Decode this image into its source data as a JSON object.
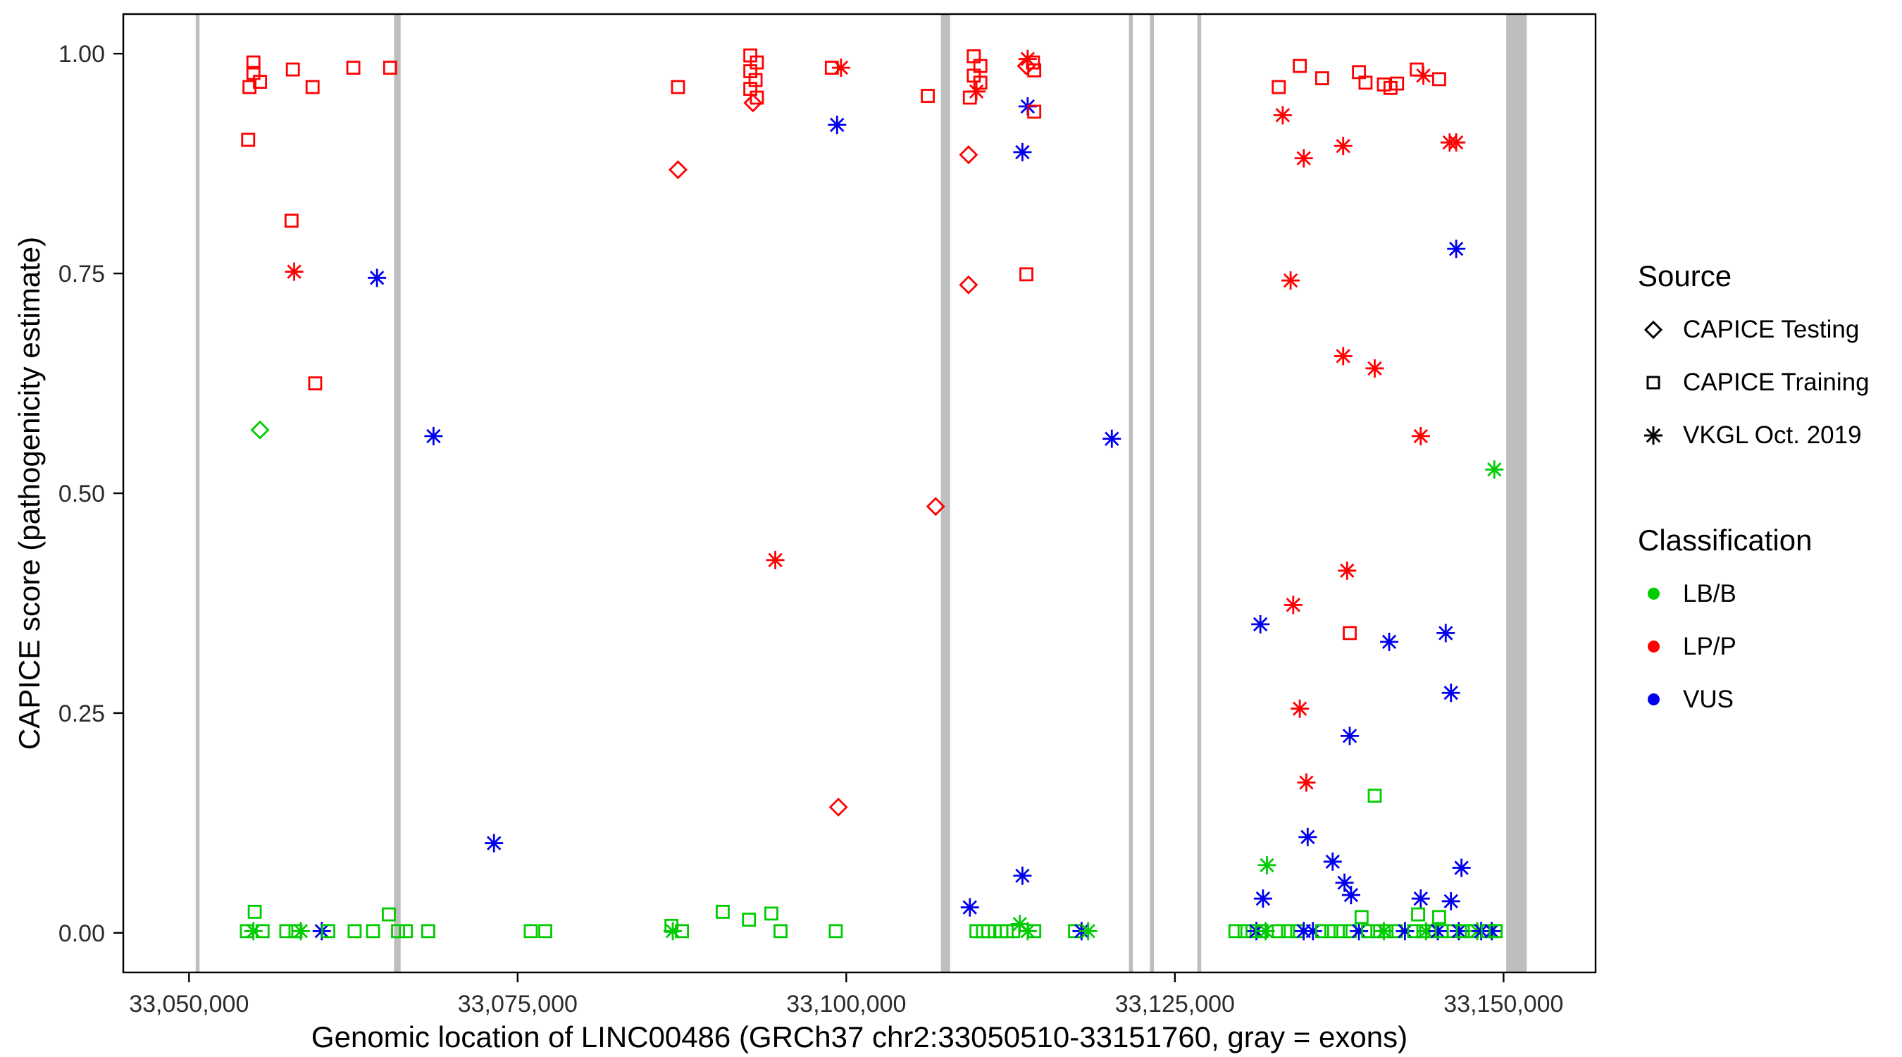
{
  "chart_data": {
    "type": "scatter",
    "title": "",
    "xlabel": "Genomic location of LINC00486 (GRCh37 chr2:33050510-33151760, gray = exons)",
    "ylabel": "CAPICE score (pathogenicity estimate)",
    "xlim": [
      33045000,
      33157000
    ],
    "ylim": [
      -0.045,
      1.045
    ],
    "x_ticks": [
      33050000,
      33075000,
      33100000,
      33125000,
      33150000
    ],
    "x_tick_labels": [
      "33,050,000",
      "33,075,000",
      "33,100,000",
      "33,125,000",
      "33,150,000"
    ],
    "y_ticks": [
      0,
      0.25,
      0.5,
      0.75,
      1
    ],
    "y_tick_labels": [
      "0.00",
      "0.25",
      "0.50",
      "0.75",
      "1.00"
    ],
    "grid": false,
    "legend_position": "right",
    "exon_color": "#BEBEBE",
    "exons": [
      {
        "start": 33050510,
        "end": 33050800
      },
      {
        "start": 33065600,
        "end": 33066100
      },
      {
        "start": 33107200,
        "end": 33107900
      },
      {
        "start": 33121500,
        "end": 33121800
      },
      {
        "start": 33123100,
        "end": 33123400
      },
      {
        "start": 33126700,
        "end": 33127000
      },
      {
        "start": 33150200,
        "end": 33151760
      }
    ],
    "source_codes": {
      "D": "CAPICE Testing",
      "S": "CAPICE Training",
      "A": "VKGL Oct. 2019"
    },
    "source_shapes": {
      "D": "diamond",
      "S": "square",
      "A": "asterisk"
    },
    "class_codes": {
      "G": "LB/B",
      "R": "LP/P",
      "B": "VUS"
    },
    "class_colors": {
      "G": "#00CC00",
      "R": "#FF0000",
      "B": "#0000EE"
    },
    "points_format": [
      "genomic_position",
      "capice_score",
      "source_code",
      "class_code"
    ],
    "points": [
      [
        33054900,
        0.99,
        "S",
        "R"
      ],
      [
        33054900,
        0.978,
        "S",
        "R"
      ],
      [
        33054600,
        0.962,
        "S",
        "R"
      ],
      [
        33055400,
        0.968,
        "S",
        "R"
      ],
      [
        33054500,
        0.902,
        "S",
        "R"
      ],
      [
        33057900,
        0.982,
        "S",
        "R"
      ],
      [
        33059400,
        0.962,
        "S",
        "R"
      ],
      [
        33062500,
        0.984,
        "S",
        "R"
      ],
      [
        33065300,
        0.984,
        "S",
        "R"
      ],
      [
        33057800,
        0.81,
        "S",
        "R"
      ],
      [
        33058000,
        0.752,
        "A",
        "R"
      ],
      [
        33059600,
        0.625,
        "S",
        "R"
      ],
      [
        33064300,
        0.745,
        "A",
        "B"
      ],
      [
        33055400,
        0.572,
        "D",
        "G"
      ],
      [
        33068600,
        0.565,
        "A",
        "B"
      ],
      [
        33073200,
        0.102,
        "A",
        "B"
      ],
      [
        33055000,
        0.024,
        "S",
        "G"
      ],
      [
        33054400,
        0.002,
        "S",
        "G"
      ],
      [
        33054900,
        0.002,
        "A",
        "G"
      ],
      [
        33055600,
        0.002,
        "S",
        "G"
      ],
      [
        33057400,
        0.002,
        "S",
        "G"
      ],
      [
        33058100,
        0.002,
        "S",
        "G"
      ],
      [
        33058500,
        0.002,
        "A",
        "G"
      ],
      [
        33060100,
        0.002,
        "A",
        "B"
      ],
      [
        33060600,
        0.002,
        "S",
        "G"
      ],
      [
        33062600,
        0.002,
        "S",
        "G"
      ],
      [
        33064000,
        0.002,
        "S",
        "G"
      ],
      [
        33065200,
        0.021,
        "S",
        "G"
      ],
      [
        33065900,
        0.002,
        "S",
        "G"
      ],
      [
        33066500,
        0.002,
        "S",
        "G"
      ],
      [
        33068200,
        0.002,
        "S",
        "G"
      ],
      [
        33076000,
        0.002,
        "S",
        "G"
      ],
      [
        33077100,
        0.002,
        "S",
        "G"
      ],
      [
        33087200,
        0.962,
        "S",
        "R"
      ],
      [
        33087200,
        0.868,
        "D",
        "R"
      ],
      [
        33086700,
        0.008,
        "S",
        "G"
      ],
      [
        33086800,
        0.002,
        "A",
        "G"
      ],
      [
        33087500,
        0.002,
        "S",
        "G"
      ],
      [
        33090600,
        0.024,
        "S",
        "G"
      ],
      [
        33092600,
        0.015,
        "S",
        "G"
      ],
      [
        33094300,
        0.022,
        "S",
        "G"
      ],
      [
        33095000,
        0.002,
        "S",
        "G"
      ],
      [
        33099200,
        0.002,
        "S",
        "G"
      ],
      [
        33092700,
        0.998,
        "S",
        "R"
      ],
      [
        33093200,
        0.99,
        "S",
        "R"
      ],
      [
        33092700,
        0.98,
        "S",
        "R"
      ],
      [
        33093100,
        0.97,
        "S",
        "R"
      ],
      [
        33092700,
        0.96,
        "S",
        "R"
      ],
      [
        33093200,
        0.95,
        "S",
        "R"
      ],
      [
        33092900,
        0.944,
        "D",
        "R"
      ],
      [
        33099300,
        0.919,
        "A",
        "B"
      ],
      [
        33094600,
        0.424,
        "A",
        "R"
      ],
      [
        33098900,
        0.984,
        "S",
        "R"
      ],
      [
        33099600,
        0.984,
        "A",
        "R"
      ],
      [
        33099400,
        0.143,
        "D",
        "R"
      ],
      [
        33106200,
        0.952,
        "S",
        "R"
      ],
      [
        33106800,
        0.485,
        "D",
        "R"
      ],
      [
        33109700,
        0.997,
        "S",
        "R"
      ],
      [
        33110200,
        0.986,
        "S",
        "R"
      ],
      [
        33109700,
        0.975,
        "S",
        "R"
      ],
      [
        33110200,
        0.967,
        "S",
        "R"
      ],
      [
        33109900,
        0.957,
        "A",
        "R"
      ],
      [
        33109400,
        0.95,
        "S",
        "R"
      ],
      [
        33109300,
        0.885,
        "D",
        "R"
      ],
      [
        33109300,
        0.737,
        "D",
        "R"
      ],
      [
        33113800,
        0.994,
        "A",
        "R"
      ],
      [
        33114200,
        0.99,
        "S",
        "R"
      ],
      [
        33113700,
        0.986,
        "D",
        "R"
      ],
      [
        33114300,
        0.981,
        "S",
        "R"
      ],
      [
        33113800,
        0.94,
        "A",
        "B"
      ],
      [
        33114300,
        0.934,
        "S",
        "R"
      ],
      [
        33113400,
        0.888,
        "A",
        "B"
      ],
      [
        33113700,
        0.749,
        "S",
        "R"
      ],
      [
        33120200,
        0.562,
        "A",
        "B"
      ],
      [
        33109400,
        0.029,
        "A",
        "B"
      ],
      [
        33109900,
        0.002,
        "S",
        "G"
      ],
      [
        33110400,
        0.002,
        "S",
        "G"
      ],
      [
        33110800,
        0.002,
        "S",
        "G"
      ],
      [
        33111300,
        0.002,
        "S",
        "G"
      ],
      [
        33111800,
        0.002,
        "S",
        "G"
      ],
      [
        33112200,
        0.002,
        "S",
        "G"
      ],
      [
        33112700,
        0.002,
        "S",
        "G"
      ],
      [
        33113200,
        0.01,
        "A",
        "G"
      ],
      [
        33113400,
        0.065,
        "A",
        "B"
      ],
      [
        33113800,
        0.002,
        "A",
        "G"
      ],
      [
        33114300,
        0.002,
        "S",
        "G"
      ],
      [
        33117400,
        0.002,
        "S",
        "G"
      ],
      [
        33117900,
        0.002,
        "A",
        "B"
      ],
      [
        33118400,
        0.002,
        "A",
        "G"
      ],
      [
        33132900,
        0.962,
        "S",
        "R"
      ],
      [
        33134500,
        0.986,
        "S",
        "R"
      ],
      [
        33133200,
        0.93,
        "A",
        "R"
      ],
      [
        33136200,
        0.972,
        "S",
        "R"
      ],
      [
        33134800,
        0.881,
        "A",
        "R"
      ],
      [
        33139000,
        0.979,
        "S",
        "R"
      ],
      [
        33139500,
        0.967,
        "S",
        "R"
      ],
      [
        33137800,
        0.895,
        "A",
        "R"
      ],
      [
        33140900,
        0.965,
        "S",
        "R"
      ],
      [
        33141400,
        0.961,
        "S",
        "R"
      ],
      [
        33141900,
        0.966,
        "S",
        "R"
      ],
      [
        33143400,
        0.982,
        "S",
        "R"
      ],
      [
        33143900,
        0.975,
        "A",
        "R"
      ],
      [
        33145100,
        0.971,
        "S",
        "R"
      ],
      [
        33145900,
        0.899,
        "A",
        "R"
      ],
      [
        33146400,
        0.899,
        "A",
        "R"
      ],
      [
        33146400,
        0.778,
        "A",
        "B"
      ],
      [
        33133800,
        0.742,
        "A",
        "R"
      ],
      [
        33137800,
        0.656,
        "A",
        "R"
      ],
      [
        33140200,
        0.642,
        "A",
        "R"
      ],
      [
        33143700,
        0.565,
        "A",
        "R"
      ],
      [
        33149300,
        0.527,
        "A",
        "G"
      ],
      [
        33138100,
        0.412,
        "A",
        "R"
      ],
      [
        33134000,
        0.373,
        "A",
        "R"
      ],
      [
        33131500,
        0.351,
        "A",
        "B"
      ],
      [
        33138300,
        0.341,
        "S",
        "R"
      ],
      [
        33141300,
        0.331,
        "A",
        "B"
      ],
      [
        33145600,
        0.341,
        "A",
        "B"
      ],
      [
        33134500,
        0.255,
        "A",
        "R"
      ],
      [
        33138300,
        0.224,
        "A",
        "B"
      ],
      [
        33146000,
        0.273,
        "A",
        "B"
      ],
      [
        33135000,
        0.171,
        "A",
        "R"
      ],
      [
        33140200,
        0.156,
        "S",
        "G"
      ],
      [
        33135100,
        0.109,
        "A",
        "B"
      ],
      [
        33137000,
        0.081,
        "A",
        "B"
      ],
      [
        33146800,
        0.074,
        "A",
        "B"
      ],
      [
        33132000,
        0.077,
        "A",
        "G"
      ],
      [
        33137900,
        0.057,
        "A",
        "B"
      ],
      [
        33138400,
        0.043,
        "A",
        "B"
      ],
      [
        33131700,
        0.039,
        "A",
        "B"
      ],
      [
        33143700,
        0.039,
        "A",
        "B"
      ],
      [
        33146000,
        0.036,
        "A",
        "B"
      ],
      [
        33129600,
        0.002,
        "S",
        "G"
      ],
      [
        33130300,
        0.002,
        "S",
        "G"
      ],
      [
        33130900,
        0.002,
        "S",
        "G"
      ],
      [
        33131200,
        0.002,
        "A",
        "B"
      ],
      [
        33131600,
        0.002,
        "S",
        "G"
      ],
      [
        33131900,
        0.002,
        "A",
        "G"
      ],
      [
        33132900,
        0.002,
        "S",
        "G"
      ],
      [
        33133600,
        0.002,
        "S",
        "G"
      ],
      [
        33134300,
        0.002,
        "S",
        "G"
      ],
      [
        33134800,
        0.002,
        "A",
        "B"
      ],
      [
        33135500,
        0.002,
        "A",
        "B"
      ],
      [
        33136200,
        0.002,
        "S",
        "G"
      ],
      [
        33136900,
        0.002,
        "S",
        "G"
      ],
      [
        33137600,
        0.002,
        "S",
        "G"
      ],
      [
        33138300,
        0.002,
        "S",
        "G"
      ],
      [
        33139000,
        0.002,
        "A",
        "B"
      ],
      [
        33139200,
        0.018,
        "S",
        "G"
      ],
      [
        33139700,
        0.002,
        "S",
        "G"
      ],
      [
        33140400,
        0.002,
        "S",
        "G"
      ],
      [
        33140900,
        0.002,
        "A",
        "G"
      ],
      [
        33141100,
        0.002,
        "S",
        "G"
      ],
      [
        33141800,
        0.002,
        "S",
        "G"
      ],
      [
        33142500,
        0.002,
        "A",
        "B"
      ],
      [
        33143200,
        0.002,
        "S",
        "G"
      ],
      [
        33143500,
        0.021,
        "S",
        "G"
      ],
      [
        33143900,
        0.002,
        "S",
        "G"
      ],
      [
        33144100,
        0.002,
        "A",
        "G"
      ],
      [
        33144600,
        0.002,
        "S",
        "G"
      ],
      [
        33145000,
        0.002,
        "A",
        "B"
      ],
      [
        33145100,
        0.018,
        "S",
        "G"
      ],
      [
        33145300,
        0.002,
        "S",
        "G"
      ],
      [
        33146200,
        0.002,
        "S",
        "G"
      ],
      [
        33146600,
        0.002,
        "A",
        "B"
      ],
      [
        33146900,
        0.002,
        "S",
        "G"
      ],
      [
        33147600,
        0.002,
        "S",
        "G"
      ],
      [
        33148000,
        0.002,
        "A",
        "G"
      ],
      [
        33148300,
        0.002,
        "A",
        "B"
      ],
      [
        33148800,
        0.002,
        "S",
        "G"
      ],
      [
        33149100,
        0.002,
        "A",
        "B"
      ],
      [
        33149400,
        0.002,
        "S",
        "G"
      ]
    ]
  },
  "legend": {
    "source": {
      "title": "Source",
      "items": [
        {
          "shape": "diamond",
          "label": "CAPICE Testing"
        },
        {
          "shape": "square",
          "label": "CAPICE Training"
        },
        {
          "shape": "asterisk",
          "label": "VKGL Oct. 2019"
        }
      ]
    },
    "classification": {
      "title": "Classification",
      "items": [
        {
          "color": "#00CC00",
          "label": "LB/B"
        },
        {
          "color": "#FF0000",
          "label": "LP/P"
        },
        {
          "color": "#0000EE",
          "label": "VUS"
        }
      ]
    }
  }
}
